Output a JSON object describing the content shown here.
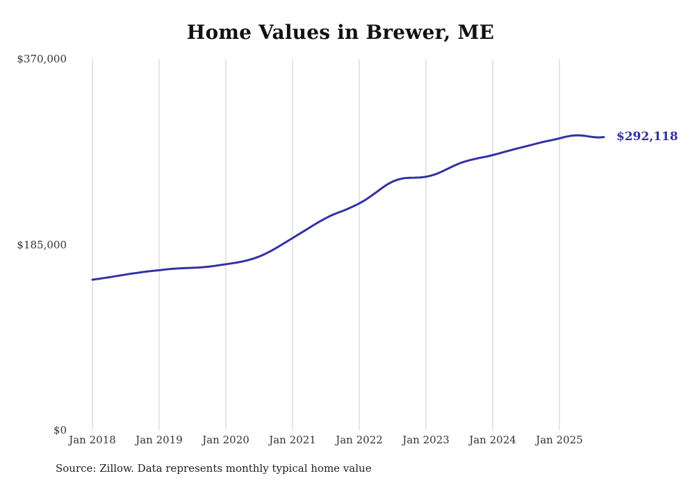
{
  "chart": {
    "title": "Home Values in Brewer, ME",
    "latest_label": "$292,118",
    "source": "Source: Zillow. Data represents monthly typical home value"
  },
  "chart_data": {
    "type": "line",
    "title": "Home Values in Brewer, ME",
    "xlabel": "",
    "ylabel": "",
    "ylim": [
      0,
      370000
    ],
    "grid": "vertical-only",
    "legend": "none",
    "line_color": "#3331a4",
    "grid_color": "#cccccc",
    "x_start": "2018-01",
    "x_end": "2025-09",
    "x_interval": "monthly",
    "values": [
      150000,
      150800,
      151600,
      152400,
      153300,
      154200,
      155100,
      156000,
      156800,
      157600,
      158300,
      158900,
      159400,
      160100,
      160700,
      161100,
      161400,
      161600,
      161800,
      162100,
      162500,
      163100,
      163800,
      164600,
      165400,
      166200,
      167100,
      168200,
      169500,
      171100,
      173100,
      175500,
      178300,
      181400,
      184700,
      188100,
      191500,
      194900,
      198300,
      201700,
      205100,
      208400,
      211400,
      214100,
      216500,
      218500,
      220800,
      223300,
      226000,
      229200,
      232900,
      236900,
      241000,
      244800,
      247800,
      249900,
      251100,
      251600,
      251700,
      251900,
      252600,
      253900,
      255700,
      258100,
      260800,
      263500,
      265900,
      267800,
      269300,
      270600,
      271800,
      272800,
      274200,
      275700,
      277200,
      278700,
      280200,
      281600,
      283000,
      284400,
      285800,
      287200,
      288400,
      289600,
      290800,
      292300,
      293400,
      293900,
      293700,
      293000,
      292200,
      291800,
      292118
    ],
    "latest_value": 292118,
    "latest_label": "$292,118",
    "yticks": [
      {
        "label": "$0",
        "value": 0
      },
      {
        "label": "$185,000",
        "value": 185000
      },
      {
        "label": "$370,000",
        "value": 370000
      }
    ],
    "xticks": [
      {
        "label": "Jan 2018",
        "month_index": 0
      },
      {
        "label": "Jan 2019",
        "month_index": 12
      },
      {
        "label": "Jan 2020",
        "month_index": 24
      },
      {
        "label": "Jan 2021",
        "month_index": 36
      },
      {
        "label": "Jan 2022",
        "month_index": 48
      },
      {
        "label": "Jan 2023",
        "month_index": 60
      },
      {
        "label": "Jan 2024",
        "month_index": 72
      },
      {
        "label": "Jan 2025",
        "month_index": 84
      }
    ],
    "source": "Source: Zillow. Data represents monthly typical home value"
  }
}
